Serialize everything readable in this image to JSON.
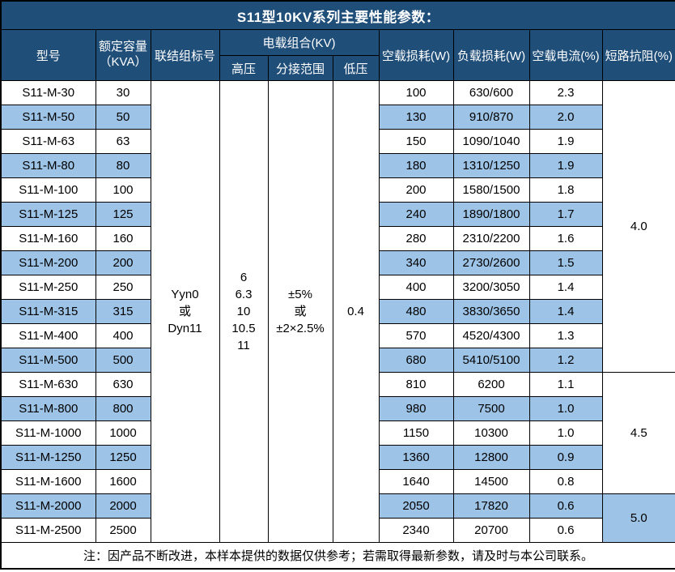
{
  "title": "S11型10KV系列主要性能参数：",
  "header": {
    "model": "型号",
    "capacity_line1": "额定容量",
    "capacity_line2": "（KVA）",
    "vector_group": "联结组标号",
    "voltage_combo": "电载组合(KV)",
    "hv": "高压",
    "tap_range": "分接范围",
    "lv": "低压",
    "no_load_loss": "空载损耗(W)",
    "load_loss": "负载损耗(W)",
    "no_load_current": "空载电流(%)",
    "impedance": "短路抗阻(%)"
  },
  "merged": {
    "vector_group_lines": [
      "Yyn0",
      "或",
      "Dyn11"
    ],
    "hv_lines": [
      "6",
      "6.3",
      "10",
      "10.5",
      "11"
    ],
    "tap_range_lines": [
      "±5%",
      "或",
      "±2×2.5%"
    ],
    "lv_value": "0.4",
    "impedance_groups": [
      {
        "value": "4.0",
        "row_span": 12
      },
      {
        "value": "4.5",
        "row_span": 5
      },
      {
        "value": "5.0",
        "row_span": 2
      }
    ]
  },
  "rows": [
    {
      "model": "S11-M-30",
      "capacity": "30",
      "no_load_loss": "100",
      "load_loss": "630/600",
      "no_load_current": "2.3"
    },
    {
      "model": "S11-M-50",
      "capacity": "50",
      "no_load_loss": "130",
      "load_loss": "910/870",
      "no_load_current": "2.0"
    },
    {
      "model": "S11-M-63",
      "capacity": "63",
      "no_load_loss": "150",
      "load_loss": "1090/1040",
      "no_load_current": "1.9"
    },
    {
      "model": "S11-M-80",
      "capacity": "80",
      "no_load_loss": "180",
      "load_loss": "1310/1250",
      "no_load_current": "1.9"
    },
    {
      "model": "S11-M-100",
      "capacity": "100",
      "no_load_loss": "200",
      "load_loss": "1580/1500",
      "no_load_current": "1.8"
    },
    {
      "model": "S11-M-125",
      "capacity": "125",
      "no_load_loss": "240",
      "load_loss": "1890/1800",
      "no_load_current": "1.7"
    },
    {
      "model": "S11-M-160",
      "capacity": "160",
      "no_load_loss": "280",
      "load_loss": "2310/2200",
      "no_load_current": "1.6"
    },
    {
      "model": "S11-M-200",
      "capacity": "200",
      "no_load_loss": "340",
      "load_loss": "2730/2600",
      "no_load_current": "1.5"
    },
    {
      "model": "S11-M-250",
      "capacity": "250",
      "no_load_loss": "400",
      "load_loss": "3200/3050",
      "no_load_current": "1.4"
    },
    {
      "model": "S11-M-315",
      "capacity": "315",
      "no_load_loss": "480",
      "load_loss": "3830/3650",
      "no_load_current": "1.4"
    },
    {
      "model": "S11-M-400",
      "capacity": "400",
      "no_load_loss": "570",
      "load_loss": "4520/4300",
      "no_load_current": "1.3"
    },
    {
      "model": "S11-M-500",
      "capacity": "500",
      "no_load_loss": "680",
      "load_loss": "5410/5100",
      "no_load_current": "1.2"
    },
    {
      "model": "S11-M-630",
      "capacity": "630",
      "no_load_loss": "810",
      "load_loss": "6200",
      "no_load_current": "1.1"
    },
    {
      "model": "S11-M-800",
      "capacity": "800",
      "no_load_loss": "980",
      "load_loss": "7500",
      "no_load_current": "1.0"
    },
    {
      "model": "S11-M-1000",
      "capacity": "1000",
      "no_load_loss": "1150",
      "load_loss": "10300",
      "no_load_current": "1.0"
    },
    {
      "model": "S11-M-1250",
      "capacity": "1250",
      "no_load_loss": "1360",
      "load_loss": "12800",
      "no_load_current": "0.9"
    },
    {
      "model": "S11-M-1600",
      "capacity": "1600",
      "no_load_loss": "1640",
      "load_loss": "14500",
      "no_load_current": "0.8"
    },
    {
      "model": "S11-M-2000",
      "capacity": "2000",
      "no_load_loss": "2050",
      "load_loss": "17820",
      "no_load_current": "0.6"
    },
    {
      "model": "S11-M-2500",
      "capacity": "2500",
      "no_load_loss": "2340",
      "load_loss": "20700",
      "no_load_current": "0.6"
    }
  ],
  "note": "注：因产品不断改进，本样本提供的数据仅供参考；若需取得最新参数，请及时与本公司联系。",
  "colors": {
    "header_bg": "#1F4E79",
    "stripe_bg": "#9DC3E6",
    "border": "#000000",
    "header_text": "#FFFFFF",
    "body_text": "#000000"
  }
}
